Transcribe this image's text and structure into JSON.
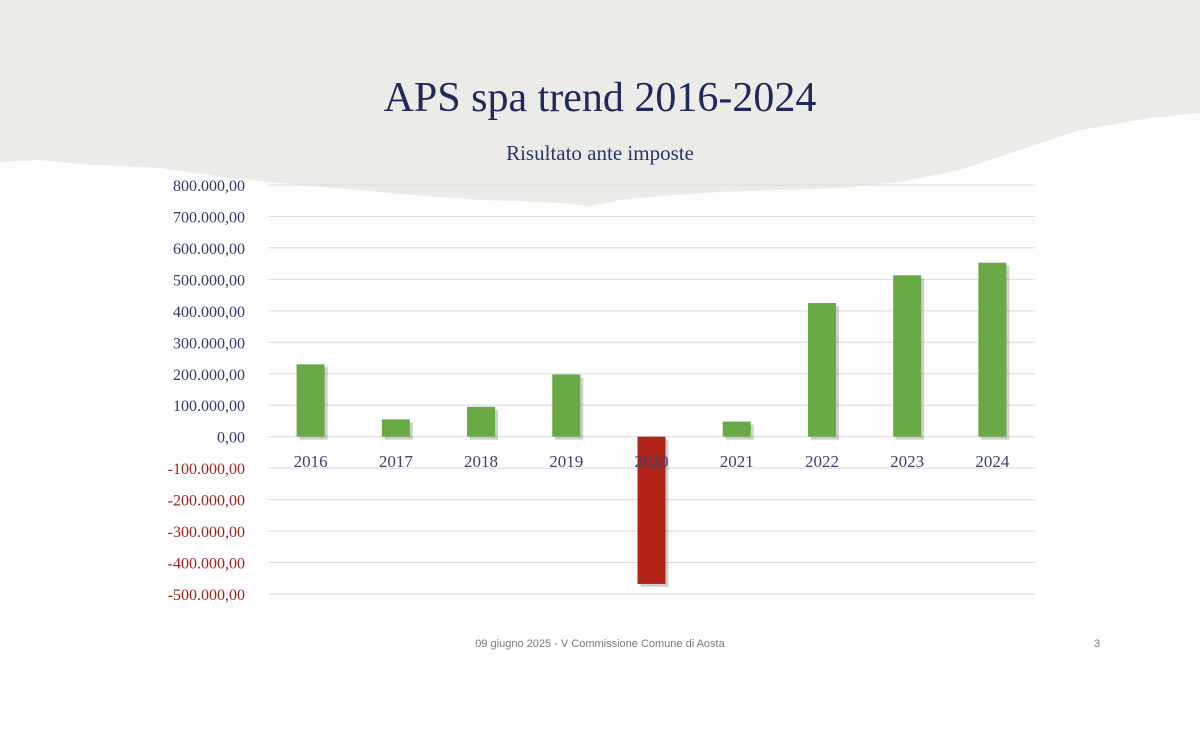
{
  "slide": {
    "title": "APS spa trend 2016-2024",
    "subtitle": "Risultato ante imposte",
    "footer": "09 giugno 2025 - V Commissione Comune di Aosta",
    "page_number": "3"
  },
  "colors": {
    "positive_bar": "#6aaa46",
    "negative_bar": "#b22318",
    "positive_tick": "#2f3a66",
    "negative_tick": "#a1231c",
    "title": "#1f2a5a",
    "header_band": "#ebebe8",
    "gridline": "#dcdcdc"
  },
  "chart_data": {
    "type": "bar",
    "categories": [
      "2016",
      "2017",
      "2018",
      "2019",
      "2020",
      "2021",
      "2022",
      "2023",
      "2024"
    ],
    "values": [
      230000,
      55000,
      95000,
      198000,
      -468000,
      48000,
      425000,
      513000,
      553000
    ],
    "title": "Risultato ante imposte",
    "xlabel": "",
    "ylabel": "",
    "ylim": [
      -500000,
      800000
    ],
    "yticks": [
      800000,
      700000,
      600000,
      500000,
      400000,
      300000,
      200000,
      100000,
      0,
      -100000,
      -200000,
      -300000,
      -400000,
      -500000
    ],
    "ytick_labels": [
      "800.000,00",
      "700.000,00",
      "600.000,00",
      "500.000,00",
      "400.000,00",
      "300.000,00",
      "200.000,00",
      "100.000,00",
      "0,00",
      "-100.000,00",
      "-200.000,00",
      "-300.000,00",
      "-400.000,00",
      "-500.000,00"
    ],
    "grid": true,
    "legend": "none"
  }
}
